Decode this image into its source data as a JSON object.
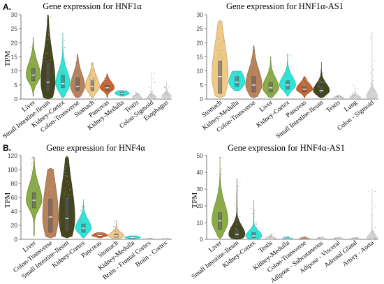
{
  "panel_letters": [
    "A.",
    "B."
  ],
  "chart_data": [
    {
      "type": "violin",
      "title": "Gene expression for HNF1α",
      "ylabel": "TPM",
      "ylim": [
        0,
        30
      ],
      "yticks": [
        0,
        5,
        10,
        15,
        20,
        25,
        30
      ],
      "categories": [
        "Liver",
        "Small Intestine-Ileum",
        "Kidney-Cortex",
        "Colon-Transverse",
        "Stomach",
        "Pancreas",
        "Kidney-Medulla",
        "Testis",
        "Colon-Sigmoid",
        "Esophagus"
      ],
      "colors": [
        "#8aab45",
        "#44461f",
        "#2ee6d8",
        "#b8825a",
        "#f0c987",
        "#c8642e",
        "#2ee6d8",
        "#d2d2d2",
        "#d2d2d2",
        "#d2d2d2"
      ],
      "series": [
        {
          "min": 1,
          "max": 22,
          "q1": 6.5,
          "median": 8.5,
          "q3": 11,
          "box": true
        },
        {
          "min": 0,
          "max": 30,
          "q1": 3,
          "median": 6,
          "q3": 13,
          "box": true
        },
        {
          "min": 0.5,
          "max": 23.5,
          "q1": 4,
          "median": 5.5,
          "q3": 8.5,
          "box": true
        },
        {
          "min": 0.5,
          "max": 16,
          "q1": 3,
          "median": 4.5,
          "q3": 7.5,
          "box": true
        },
        {
          "min": 0.5,
          "max": 13,
          "q1": 3,
          "median": 4.5,
          "q3": 6.5,
          "box": true
        },
        {
          "min": 0.5,
          "max": 9,
          "q1": 3,
          "median": 4,
          "q3": 5,
          "box": true
        },
        {
          "min": 1,
          "max": 3,
          "q1": 1.5,
          "median": 2,
          "q3": 2.5,
          "box": true
        },
        {
          "min": 0,
          "max": 2.5,
          "q1": 0.3,
          "median": 0.6,
          "q3": 1,
          "box": false
        },
        {
          "min": 0,
          "max": 9.5,
          "q1": 0.3,
          "median": 0.6,
          "q3": 1,
          "box": false
        },
        {
          "min": 0,
          "max": 6,
          "q1": 0.5,
          "median": 1,
          "q3": 1.5,
          "box": false
        }
      ]
    },
    {
      "type": "violin",
      "title": "Gene expression for HNF1α-AS1",
      "ylabel": "",
      "ylim": [
        0,
        30
      ],
      "yticks": [
        0,
        5,
        10,
        15,
        20,
        25,
        30
      ],
      "categories": [
        "Stomach",
        "Kidney-Medulla",
        "Colon-Transverse",
        "Liver",
        "Kidney-Cortex",
        "Pancreas",
        "Small Intestine-Ileum",
        "Testis",
        "Lung",
        "Colon - Sigmoid"
      ],
      "colors": [
        "#f0c987",
        "#2ee6d8",
        "#b8825a",
        "#8aab45",
        "#2ee6d8",
        "#c8642e",
        "#44461f",
        "#d2d2d2",
        "#d2d2d2",
        "#d2d2d2"
      ],
      "series": [
        {
          "min": 0.5,
          "max": 28,
          "q1": 2,
          "median": 8,
          "q3": 13.5,
          "box": true
        },
        {
          "min": 3,
          "max": 10,
          "q1": 4.5,
          "median": 6,
          "q3": 8,
          "box": true
        },
        {
          "min": 0.5,
          "max": 19,
          "q1": 2.5,
          "median": 5,
          "q3": 8,
          "box": true
        },
        {
          "min": 0.5,
          "max": 15,
          "q1": 2.5,
          "median": 4,
          "q3": 6,
          "box": true
        },
        {
          "min": 1,
          "max": 16,
          "q1": 3.5,
          "median": 5,
          "q3": 6.5,
          "box": true
        },
        {
          "min": 0.5,
          "max": 8,
          "q1": 2.5,
          "median": 3.5,
          "q3": 4.5,
          "box": true
        },
        {
          "min": 0.5,
          "max": 13,
          "q1": 2,
          "median": 3,
          "q3": 4.5,
          "box": true
        },
        {
          "min": 0,
          "max": 1.5,
          "q1": 0.2,
          "median": 0.4,
          "q3": 0.7,
          "box": false
        },
        {
          "min": 0,
          "max": 5,
          "q1": 0.3,
          "median": 0.6,
          "q3": 1,
          "box": false
        },
        {
          "min": 0,
          "max": 24,
          "q1": 0.5,
          "median": 1,
          "q3": 2,
          "box": false
        }
      ]
    },
    {
      "type": "violin",
      "title": "Gene expression for HNF4α",
      "ylabel": "TPM",
      "ylim": [
        0,
        120
      ],
      "yticks": [
        0,
        20,
        40,
        60,
        80,
        100,
        120
      ],
      "categories": [
        "Liver",
        "Colon-Transverse",
        "Small Intestine-Ileum",
        "Kidney-Cortex",
        "Pancreas",
        "Stomach",
        "Kidney-Medulla",
        "Brain - Frontal Cortex",
        "Brain - Cortex"
      ],
      "colors": [
        "#8aab45",
        "#b8825a",
        "#44461f",
        "#2ee6d8",
        "#c8642e",
        "#f0c987",
        "#2ee6d8",
        "#d2d2d2",
        "#d2d2d2"
      ],
      "series": [
        {
          "min": 5,
          "max": 118,
          "q1": 45,
          "median": 56,
          "q3": 67,
          "box": true
        },
        {
          "min": 2,
          "max": 102,
          "q1": 10,
          "median": 32,
          "q3": 58,
          "box": true
        },
        {
          "min": 2,
          "max": 119,
          "q1": 12,
          "median": 30,
          "q3": 60,
          "box": true
        },
        {
          "min": 2,
          "max": 57,
          "q1": 10,
          "median": 16,
          "q3": 22,
          "box": true
        },
        {
          "min": 2,
          "max": 10,
          "q1": 4,
          "median": 5.5,
          "q3": 7,
          "box": true
        },
        {
          "min": 1,
          "max": 27,
          "q1": 3,
          "median": 5,
          "q3": 8,
          "box": true
        },
        {
          "min": 0.5,
          "max": 5,
          "q1": 1.5,
          "median": 2.5,
          "q3": 3.5,
          "box": true
        },
        {
          "min": 0,
          "max": 1.5,
          "q1": 0.2,
          "median": 0.5,
          "q3": 0.8,
          "box": false
        },
        {
          "min": 0,
          "max": 1.5,
          "q1": 0.2,
          "median": 0.5,
          "q3": 0.8,
          "box": false
        }
      ]
    },
    {
      "type": "violin",
      "title": "Gene expression for HNF4α-AS1",
      "ylabel": "TPM",
      "ylim": [
        0,
        50
      ],
      "yticks": [
        0,
        10,
        20,
        30,
        40,
        50
      ],
      "categories": [
        "Liver",
        "Small Intestine-Ileum",
        "Kidney-Cortex",
        "Testis",
        "Kidney-Medulla",
        "Colon-Transverse",
        "Adipose - Subcutaneous",
        "Adipose - Visceral",
        "Adrenal Gland",
        "Artery - Aorta"
      ],
      "colors": [
        "#8aab45",
        "#44461f",
        "#2ee6d8",
        "#d2d2d2",
        "#2ee6d8",
        "#b8825a",
        "#d2d2d2",
        "#d2d2d2",
        "#d2d2d2",
        "#d2d2d2"
      ],
      "series": [
        {
          "min": 0.5,
          "max": 49,
          "q1": 6,
          "median": 11,
          "q3": 16,
          "box": true
        },
        {
          "min": 0,
          "max": 36,
          "q1": 1,
          "median": 3,
          "q3": 6,
          "box": true
        },
        {
          "min": 0,
          "max": 23,
          "q1": 1,
          "median": 2,
          "q3": 4,
          "box": true
        },
        {
          "min": 0,
          "max": 3,
          "q1": 0.3,
          "median": 0.6,
          "q3": 1,
          "box": false
        },
        {
          "min": 0,
          "max": 2,
          "q1": 0.2,
          "median": 0.4,
          "q3": 0.7,
          "box": false
        },
        {
          "min": 0,
          "max": 2,
          "q1": 0.2,
          "median": 0.4,
          "q3": 0.7,
          "box": false
        },
        {
          "min": 0,
          "max": 1.5,
          "q1": 0.1,
          "median": 0.3,
          "q3": 0.5,
          "box": false
        },
        {
          "min": 0,
          "max": 1.5,
          "q1": 0.1,
          "median": 0.3,
          "q3": 0.5,
          "box": false
        },
        {
          "min": 0,
          "max": 1.5,
          "q1": 0.1,
          "median": 0.3,
          "q3": 0.5,
          "box": false
        },
        {
          "min": 0,
          "max": 30,
          "q1": 0.1,
          "median": 0.3,
          "q3": 0.5,
          "box": false
        }
      ]
    }
  ]
}
